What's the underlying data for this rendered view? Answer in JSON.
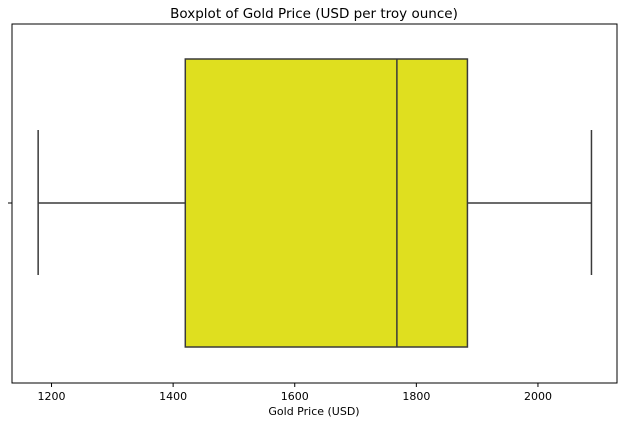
{
  "chart_data": {
    "type": "box",
    "title": "Boxplot of Gold Price (USD per troy ounce)",
    "xlabel": "Gold Price (USD)",
    "ylabel": "",
    "orientation": "horizontal",
    "xlim": [
      1135,
      2130
    ],
    "x_ticks": [
      1200,
      1400,
      1600,
      1800,
      2000
    ],
    "x_tick_labels": [
      "1200",
      "1400",
      "1600",
      "1800",
      "2000"
    ],
    "grid": false,
    "box": {
      "whisker_low": 1178,
      "q1": 1420,
      "median": 1768,
      "q3": 1884,
      "whisker_high": 2088
    },
    "colors": {
      "box_fill": "#dfdf1f",
      "line": "#3a3a3a",
      "axis": "#000000"
    }
  }
}
